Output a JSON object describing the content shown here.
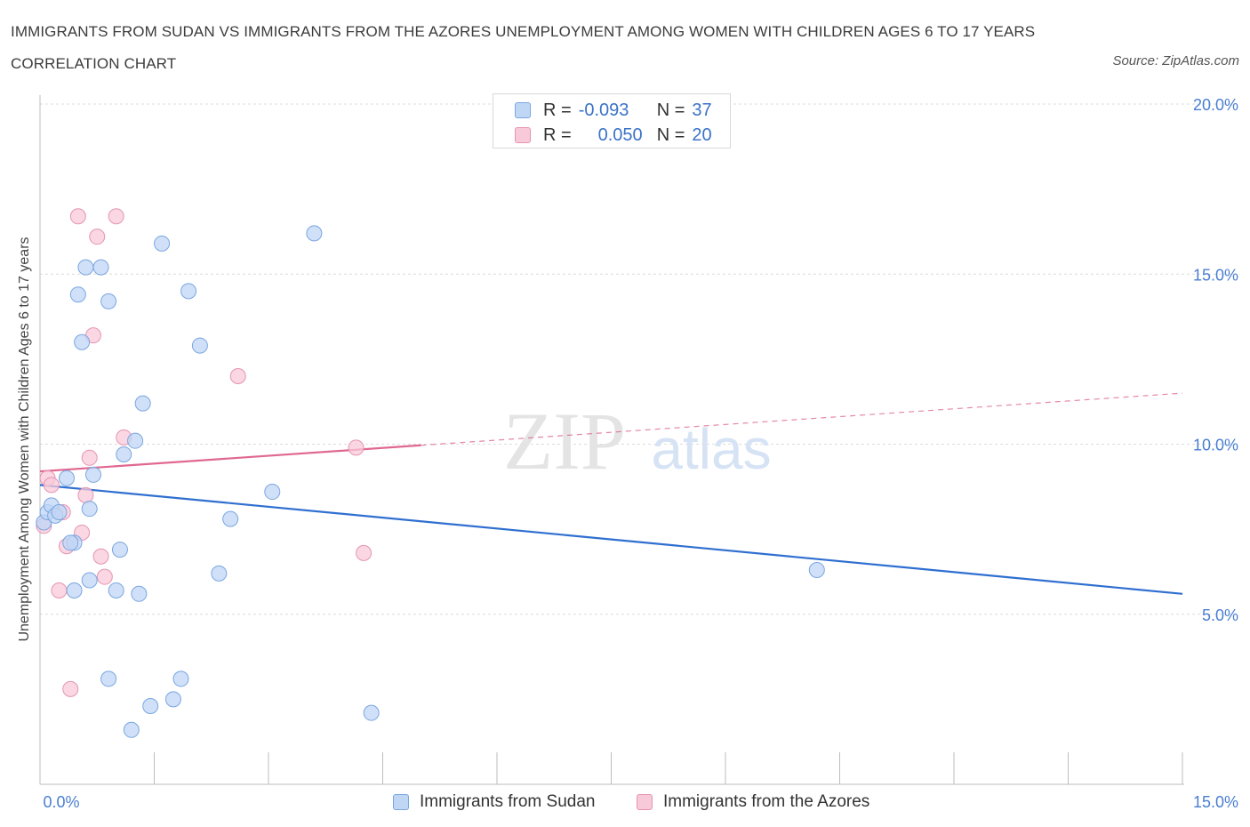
{
  "title": "IMMIGRANTS FROM SUDAN VS IMMIGRANTS FROM THE AZORES UNEMPLOYMENT AMONG WOMEN WITH CHILDREN AGES 6 TO 17 YEARS CORRELATION CHART",
  "source": "Source: ZipAtlas.com",
  "watermark": {
    "zip": "ZIP",
    "atlas": "atlas"
  },
  "legend": {
    "sudan": {
      "r_label": "R =",
      "r_value": "-0.093",
      "n_label": "N =",
      "n_value": "37"
    },
    "azores": {
      "r_label": "R =",
      "r_value": "0.050",
      "n_label": "N =",
      "n_value": "20"
    }
  },
  "colors": {
    "sudan_fill": "#c0d6f5",
    "sudan_stroke": "#7aa6e0",
    "sudan_line": "#2f6fd0",
    "azores_fill": "#f8c9d8",
    "azores_stroke": "#e595b2",
    "azores_line": "#e06890",
    "axis_label": "#4a7fd0",
    "grid": "#dcdcdc"
  },
  "chart_data": {
    "type": "scatter",
    "title": "IMMIGRANTS FROM SUDAN VS IMMIGRANTS FROM THE AZORES UNEMPLOYMENT AMONG WOMEN WITH CHILDREN AGES 6 TO 17 YEARS CORRELATION CHART",
    "xlabel": "",
    "ylabel": "Unemployment Among Women with Children Ages 6 to 17 years",
    "xlim": [
      0,
      15
    ],
    "ylim": [
      0,
      20
    ],
    "x_tick_labels": [
      "0.0%",
      "15.0%"
    ],
    "y_ticks": [
      5,
      10,
      15,
      20
    ],
    "y_tick_labels": [
      "5.0%",
      "10.0%",
      "15.0%",
      "20.0%"
    ],
    "grid": true,
    "series": [
      {
        "name": "Immigrants from Sudan",
        "points": [
          [
            0.05,
            7.7
          ],
          [
            0.1,
            8.0
          ],
          [
            0.15,
            8.2
          ],
          [
            0.2,
            7.9
          ],
          [
            0.25,
            8.0
          ],
          [
            0.35,
            9.0
          ],
          [
            0.45,
            7.1
          ],
          [
            0.5,
            14.4
          ],
          [
            0.55,
            13.0
          ],
          [
            0.6,
            15.2
          ],
          [
            0.65,
            8.1
          ],
          [
            0.7,
            9.1
          ],
          [
            0.8,
            15.2
          ],
          [
            0.9,
            14.2
          ],
          [
            0.4,
            7.1
          ],
          [
            1.0,
            5.7
          ],
          [
            1.1,
            9.7
          ],
          [
            1.25,
            10.1
          ],
          [
            1.35,
            11.2
          ],
          [
            1.6,
            15.9
          ],
          [
            1.95,
            14.5
          ],
          [
            2.1,
            12.9
          ],
          [
            2.35,
            6.2
          ],
          [
            2.5,
            7.8
          ],
          [
            3.05,
            8.6
          ],
          [
            3.6,
            16.2
          ],
          [
            0.65,
            6.0
          ],
          [
            1.05,
            6.9
          ],
          [
            1.3,
            5.6
          ],
          [
            0.9,
            3.1
          ],
          [
            1.45,
            2.3
          ],
          [
            1.75,
            2.5
          ],
          [
            1.85,
            3.1
          ],
          [
            1.2,
            1.6
          ],
          [
            4.35,
            2.1
          ],
          [
            10.2,
            6.3
          ],
          [
            0.45,
            5.7
          ]
        ],
        "trend": {
          "x_start": 0,
          "y_start": 8.8,
          "x_end": 15,
          "y_end": 5.6
        }
      },
      {
        "name": "Immigrants from the Azores",
        "points": [
          [
            0.05,
            7.6
          ],
          [
            0.1,
            9.0
          ],
          [
            0.15,
            8.8
          ],
          [
            0.25,
            5.7
          ],
          [
            0.3,
            8.0
          ],
          [
            0.35,
            7.0
          ],
          [
            0.4,
            2.8
          ],
          [
            0.5,
            16.7
          ],
          [
            0.55,
            7.4
          ],
          [
            0.6,
            8.5
          ],
          [
            0.65,
            9.6
          ],
          [
            0.7,
            13.2
          ],
          [
            0.75,
            16.1
          ],
          [
            0.8,
            6.7
          ],
          [
            0.85,
            6.1
          ],
          [
            1.0,
            16.7
          ],
          [
            1.1,
            10.2
          ],
          [
            2.6,
            12.0
          ],
          [
            4.15,
            9.9
          ],
          [
            4.25,
            6.8
          ]
        ],
        "trend": {
          "x_start": 0,
          "y_start": 9.2,
          "x_solid_end": 5.0,
          "x_end": 15,
          "y_end": 11.5
        }
      }
    ]
  },
  "bottom_legend": {
    "sudan": "Immigrants from Sudan",
    "azores": "Immigrants from the Azores"
  }
}
